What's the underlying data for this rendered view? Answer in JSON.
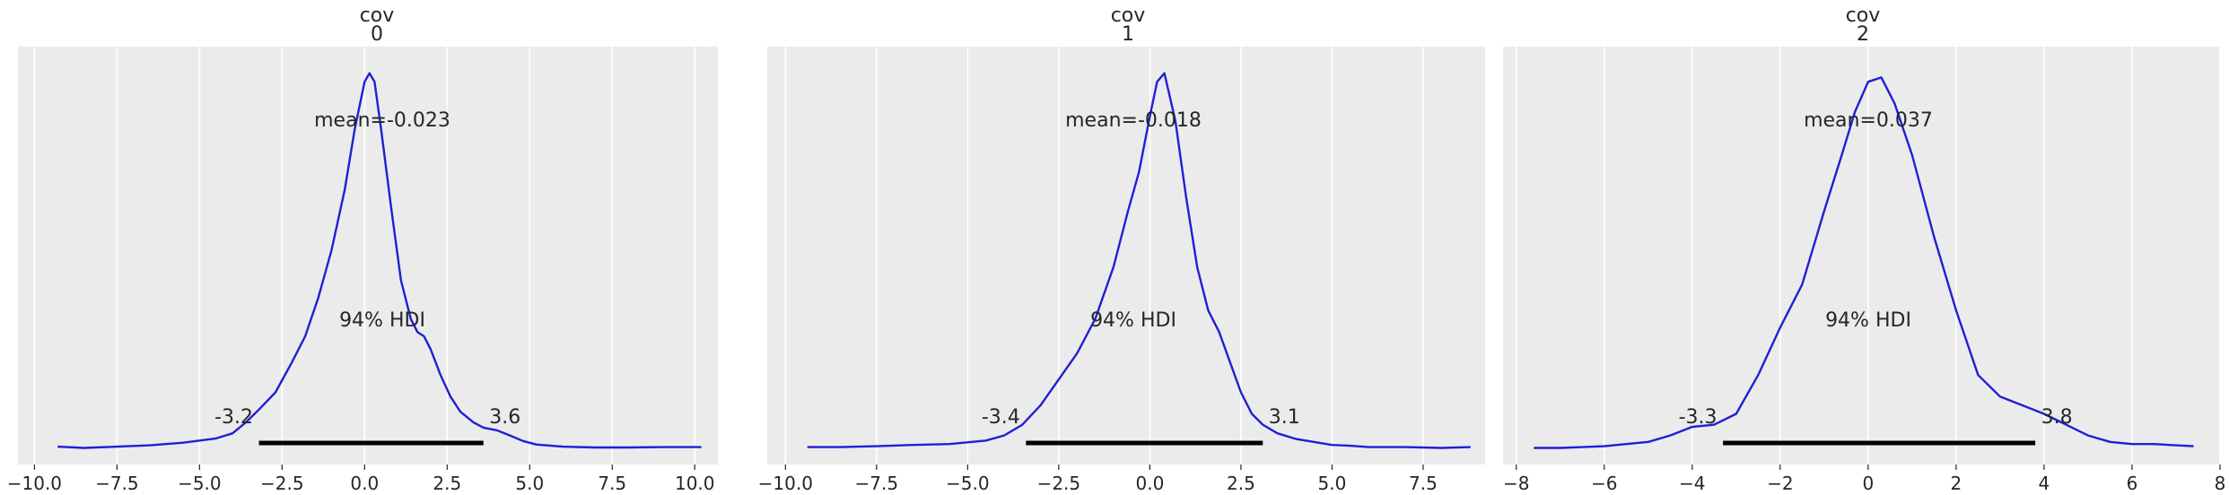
{
  "colors": {
    "line": "#1f1fd6",
    "background": "#ebebeb",
    "grid": "#ffffff",
    "hdi": "#000000"
  },
  "chart_data": [
    {
      "type": "line",
      "title": [
        "cov",
        "0"
      ],
      "mean_label": "mean=-0.023",
      "hdi_label": "94% HDI",
      "hdi": {
        "low": -3.2,
        "high": 3.6,
        "low_label": "-3.2",
        "high_label": "3.6"
      },
      "xlim": [
        -10.5,
        10.7
      ],
      "xticks": [
        -10.0,
        -7.5,
        -5.0,
        -2.5,
        0.0,
        2.5,
        5.0,
        7.5,
        10.0
      ],
      "xtick_labels": [
        "−10.0",
        "−7.5",
        "−5.0",
        "−2.5",
        "0.0",
        "2.5",
        "5.0",
        "7.5",
        "10.0"
      ],
      "grid": true,
      "x": [
        -9.3,
        -8.5,
        -7.5,
        -6.5,
        -5.5,
        -5.0,
        -4.5,
        -4.0,
        -3.6,
        -3.2,
        -2.7,
        -2.2,
        -1.8,
        -1.4,
        -1.0,
        -0.6,
        -0.3,
        0.0,
        0.15,
        0.3,
        0.5,
        0.8,
        1.1,
        1.4,
        1.6,
        1.8,
        2.0,
        2.3,
        2.6,
        2.9,
        3.3,
        3.6,
        4.0,
        4.4,
        4.8,
        5.2,
        6.0,
        7.0,
        8.0,
        9.0,
        10.2
      ],
      "y": [
        0.004,
        0.001,
        0.004,
        0.007,
        0.013,
        0.018,
        0.023,
        0.035,
        0.06,
        0.09,
        0.13,
        0.2,
        0.26,
        0.35,
        0.46,
        0.6,
        0.74,
        0.85,
        0.87,
        0.85,
        0.74,
        0.56,
        0.39,
        0.3,
        0.27,
        0.26,
        0.23,
        0.17,
        0.12,
        0.085,
        0.06,
        0.048,
        0.042,
        0.03,
        0.017,
        0.009,
        0.004,
        0.002,
        0.002,
        0.003,
        0.003
      ],
      "ymax": 0.89
    },
    {
      "type": "line",
      "title": [
        "cov",
        "1"
      ],
      "mean_label": "mean=-0.018",
      "hdi_label": "94% HDI",
      "hdi": {
        "low": -3.4,
        "high": 3.1,
        "low_label": "-3.4",
        "high_label": "3.1"
      },
      "xlim": [
        -10.5,
        9.2
      ],
      "xticks": [
        -10.0,
        -7.5,
        -5.0,
        -2.5,
        0.0,
        2.5,
        5.0,
        7.5
      ],
      "xtick_labels": [
        "−10.0",
        "−7.5",
        "−5.0",
        "−2.5",
        "0.0",
        "2.5",
        "5.0",
        "7.5"
      ],
      "grid": true,
      "x": [
        -9.4,
        -8.5,
        -7.5,
        -6.5,
        -5.5,
        -4.5,
        -4.0,
        -3.5,
        -3.0,
        -2.5,
        -2.0,
        -1.5,
        -1.0,
        -0.6,
        -0.3,
        0.0,
        0.2,
        0.4,
        0.7,
        1.0,
        1.3,
        1.6,
        1.9,
        2.2,
        2.5,
        2.8,
        3.1,
        3.5,
        4.0,
        4.5,
        5.0,
        5.5,
        6.0,
        7.0,
        8.0,
        8.8
      ],
      "y": [
        0.003,
        0.003,
        0.005,
        0.008,
        0.01,
        0.018,
        0.03,
        0.055,
        0.1,
        0.16,
        0.22,
        0.3,
        0.42,
        0.55,
        0.64,
        0.77,
        0.85,
        0.87,
        0.76,
        0.58,
        0.42,
        0.32,
        0.27,
        0.2,
        0.13,
        0.08,
        0.055,
        0.035,
        0.022,
        0.015,
        0.008,
        0.006,
        0.003,
        0.003,
        0.001,
        0.003
      ],
      "ymax": 0.89
    },
    {
      "type": "line",
      "title": [
        "cov",
        "2"
      ],
      "mean_label": "mean=0.037",
      "hdi_label": "94% HDI",
      "hdi": {
        "low": -3.3,
        "high": 3.8,
        "low_label": "-3.3",
        "high_label": "3.8"
      },
      "xlim": [
        -8.3,
        8.0
      ],
      "xticks": [
        -8,
        -6,
        -4,
        -2,
        0,
        2,
        4,
        6,
        8
      ],
      "xtick_labels": [
        "−8",
        "−6",
        "−4",
        "−2",
        "0",
        "2",
        "4",
        "6",
        "8"
      ],
      "grid": true,
      "x": [
        -7.6,
        -7.0,
        -6.5,
        -6.0,
        -5.5,
        -5.0,
        -4.5,
        -4.0,
        -3.5,
        -3.0,
        -2.5,
        -2.0,
        -1.5,
        -1.0,
        -0.6,
        -0.3,
        0.0,
        0.3,
        0.6,
        1.0,
        1.5,
        2.0,
        2.5,
        3.0,
        3.5,
        4.0,
        4.5,
        5.0,
        5.5,
        6.0,
        6.5,
        7.0,
        7.4
      ],
      "y": [
        0.001,
        0.001,
        0.003,
        0.005,
        0.01,
        0.015,
        0.03,
        0.05,
        0.055,
        0.08,
        0.17,
        0.28,
        0.38,
        0.55,
        0.68,
        0.78,
        0.85,
        0.86,
        0.8,
        0.68,
        0.49,
        0.32,
        0.17,
        0.12,
        0.1,
        0.08,
        0.055,
        0.03,
        0.015,
        0.01,
        0.01,
        0.007,
        0.005
      ],
      "ymax": 0.89
    }
  ]
}
